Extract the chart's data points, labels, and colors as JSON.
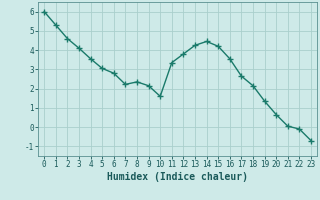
{
  "x": [
    0,
    1,
    2,
    3,
    4,
    5,
    6,
    7,
    8,
    9,
    10,
    11,
    12,
    13,
    14,
    15,
    16,
    17,
    18,
    19,
    20,
    21,
    22,
    23
  ],
  "y": [
    6.0,
    5.3,
    4.6,
    4.1,
    3.55,
    3.05,
    2.8,
    2.22,
    2.35,
    2.15,
    1.6,
    3.35,
    3.8,
    4.25,
    4.45,
    4.2,
    3.55,
    2.65,
    2.15,
    1.35,
    0.65,
    0.05,
    -0.1,
    -0.7
  ],
  "line_color": "#1a7a6a",
  "marker": "+",
  "marker_size": 4,
  "line_width": 1.0,
  "bg_color": "#ceeae8",
  "grid_color": "#aacfcc",
  "xlabel": "Humidex (Indice chaleur)",
  "xlim": [
    -0.5,
    23.5
  ],
  "ylim": [
    -1.5,
    6.5
  ],
  "yticks": [
    -1,
    0,
    1,
    2,
    3,
    4,
    5,
    6
  ],
  "xticks": [
    0,
    1,
    2,
    3,
    4,
    5,
    6,
    7,
    8,
    9,
    10,
    11,
    12,
    13,
    14,
    15,
    16,
    17,
    18,
    19,
    20,
    21,
    22,
    23
  ],
  "tick_label_fontsize": 5.5,
  "xlabel_fontsize": 7,
  "text_color": "#1a5a5a",
  "spine_color": "#5a9090",
  "markeredgewidth": 1.0
}
